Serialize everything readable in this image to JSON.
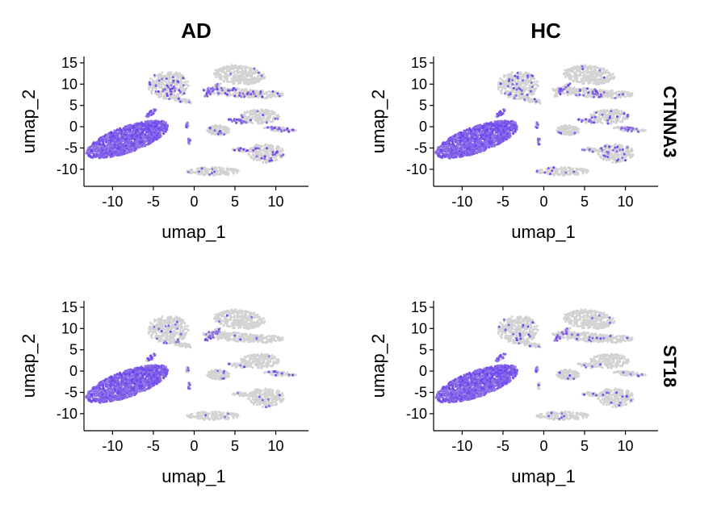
{
  "chart_data": {
    "type": "scatter",
    "subtype": "umap-feature-plot-grid",
    "columns": [
      "AD",
      "HC"
    ],
    "rows": [
      "CTNNA3",
      "ST18"
    ],
    "xlabel": "umap_1",
    "ylabel": "umap_2",
    "xlim": [
      -13.5,
      14
    ],
    "ylim": [
      -14,
      16.5
    ],
    "xticks": [
      -10,
      -5,
      0,
      5,
      10
    ],
    "yticks": [
      15,
      10,
      5,
      0,
      -5,
      -10
    ],
    "colors": {
      "low": "#d3d3d3",
      "high": "#6a3ff0"
    },
    "grid": false,
    "legend": "none",
    "clusters": [
      {
        "id": "oligodendrocyte",
        "x": -8.2,
        "y": -3.0,
        "angle": 40,
        "rx": 6.2,
        "ry": 2.6,
        "n": 1400,
        "expr": {
          "CTNNA3": {
            "AD": 0.97,
            "HC": 0.95
          },
          "ST18": {
            "AD": 0.95,
            "HC": 0.92
          }
        }
      },
      {
        "id": "tail-left",
        "x": -5.3,
        "y": 3.2,
        "angle": 60,
        "rx": 1.1,
        "ry": 0.35,
        "n": 25,
        "expr": {
          "CTNNA3": {
            "AD": 0.85,
            "HC": 0.8
          },
          "ST18": {
            "AD": 0.6,
            "HC": 0.6
          }
        }
      },
      {
        "id": "opc-top",
        "x": -3.2,
        "y": 9.8,
        "angle": 0,
        "rx": 2.5,
        "ry": 3.3,
        "n": 320,
        "expr": {
          "CTNNA3": {
            "AD": 0.12,
            "HC": 0.1
          },
          "ST18": {
            "AD": 0.05,
            "HC": 0.05
          }
        }
      },
      {
        "id": "opc-arm",
        "x": -1.6,
        "y": 6.3,
        "angle": -25,
        "rx": 1.6,
        "ry": 0.5,
        "n": 50,
        "expr": {
          "CTNNA3": {
            "AD": 0.05,
            "HC": 0.05
          },
          "ST18": {
            "AD": 0.03,
            "HC": 0.03
          }
        }
      },
      {
        "id": "neuron-a",
        "x": 5.5,
        "y": 12.2,
        "angle": -15,
        "rx": 3.2,
        "ry": 2.2,
        "n": 320,
        "expr": {
          "CTNNA3": {
            "AD": 0.02,
            "HC": 0.02
          },
          "ST18": {
            "AD": 0.01,
            "HC": 0.01
          }
        }
      },
      {
        "id": "neuron-b",
        "x": 4.7,
        "y": 8.1,
        "angle": -10,
        "rx": 3.8,
        "ry": 1.1,
        "n": 200,
        "expr": {
          "CTNNA3": {
            "AD": 0.12,
            "HC": 0.14
          },
          "ST18": {
            "AD": 0.03,
            "HC": 0.03
          }
        }
      },
      {
        "id": "neuron-c",
        "x": 8.5,
        "y": 7.6,
        "angle": 0,
        "rx": 2.4,
        "ry": 0.9,
        "n": 110,
        "expr": {
          "CTNNA3": {
            "AD": 0.05,
            "HC": 0.05
          },
          "ST18": {
            "AD": 0.01,
            "HC": 0.01
          }
        }
      },
      {
        "id": "neuron-arm",
        "x": 2.3,
        "y": 8.6,
        "angle": 60,
        "rx": 1.8,
        "ry": 0.45,
        "n": 50,
        "expr": {
          "CTNNA3": {
            "AD": 0.35,
            "HC": 0.3
          },
          "ST18": {
            "AD": 0.35,
            "HC": 0.3
          }
        }
      },
      {
        "id": "astro",
        "x": 8.0,
        "y": 2.4,
        "angle": 0,
        "rx": 2.4,
        "ry": 1.7,
        "n": 180,
        "expr": {
          "CTNNA3": {
            "AD": 0.08,
            "HC": 0.06
          },
          "ST18": {
            "AD": 0.02,
            "HC": 0.02
          }
        }
      },
      {
        "id": "astro-arm",
        "x": 10.5,
        "y": -0.6,
        "angle": -10,
        "rx": 2.0,
        "ry": 0.5,
        "n": 70,
        "expr": {
          "CTNNA3": {
            "AD": 0.35,
            "HC": 0.15
          },
          "ST18": {
            "AD": 0.08,
            "HC": 0.05
          }
        }
      },
      {
        "id": "astro-left",
        "x": 5.3,
        "y": 1.3,
        "angle": -20,
        "rx": 1.2,
        "ry": 0.45,
        "n": 40,
        "expr": {
          "CTNNA3": {
            "AD": 0.4,
            "HC": 0.3
          },
          "ST18": {
            "AD": 0.05,
            "HC": 0.05
          }
        }
      },
      {
        "id": "microglia",
        "x": 3.0,
        "y": -0.8,
        "angle": 0,
        "rx": 1.4,
        "ry": 1.2,
        "n": 120,
        "expr": {
          "CTNNA3": {
            "AD": 0.06,
            "HC": 0.05
          },
          "ST18": {
            "AD": 0.04,
            "HC": 0.04
          }
        }
      },
      {
        "id": "endo",
        "x": 8.8,
        "y": -6.2,
        "angle": 0,
        "rx": 2.2,
        "ry": 2.3,
        "n": 230,
        "expr": {
          "CTNNA3": {
            "AD": 0.07,
            "HC": 0.07
          },
          "ST18": {
            "AD": 0.03,
            "HC": 0.03
          }
        }
      },
      {
        "id": "endo-left",
        "x": 5.7,
        "y": -5.4,
        "angle": 0,
        "rx": 1.0,
        "ry": 0.5,
        "n": 30,
        "expr": {
          "CTNNA3": {
            "AD": 0.2,
            "HC": 0.15
          },
          "ST18": {
            "AD": 0.05,
            "HC": 0.05
          }
        }
      },
      {
        "id": "immune",
        "x": 2.3,
        "y": -10.5,
        "angle": 0,
        "rx": 3.2,
        "ry": 1.0,
        "n": 150,
        "expr": {
          "CTNNA3": {
            "AD": 0.05,
            "HC": 0.06
          },
          "ST18": {
            "AD": 0.03,
            "HC": 0.03
          }
        }
      },
      {
        "id": "small-a",
        "x": -0.8,
        "y": 0.4,
        "angle": 0,
        "rx": 0.25,
        "ry": 0.8,
        "n": 14,
        "expr": {
          "CTNNA3": {
            "AD": 0.5,
            "HC": 0.4
          },
          "ST18": {
            "AD": 0.4,
            "HC": 0.4
          }
        }
      },
      {
        "id": "small-b",
        "x": -0.6,
        "y": -3.4,
        "angle": 0,
        "rx": 0.2,
        "ry": 0.8,
        "n": 14,
        "expr": {
          "CTNNA3": {
            "AD": 0.5,
            "HC": 0.3
          },
          "ST18": {
            "AD": 0.3,
            "HC": 0.2
          }
        }
      }
    ]
  }
}
